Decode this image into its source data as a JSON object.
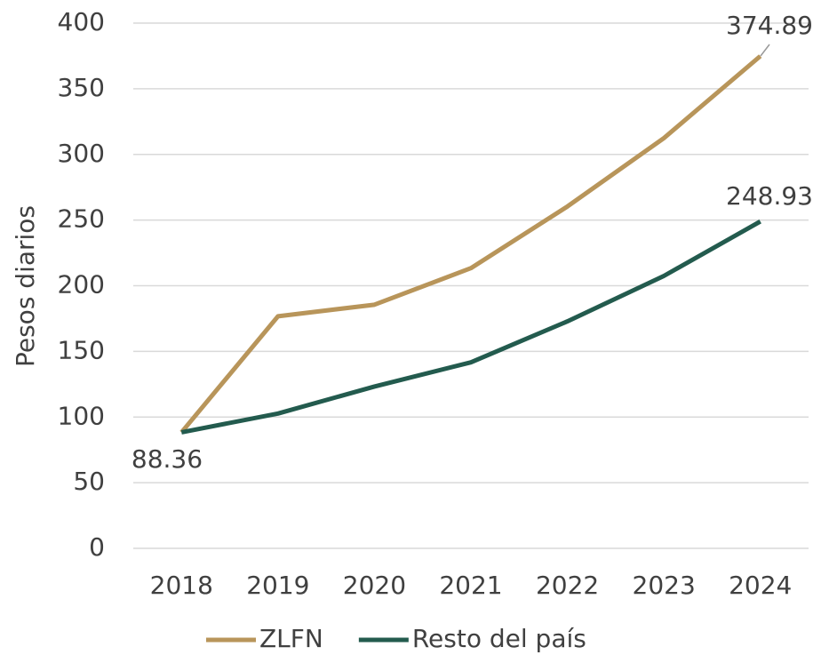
{
  "chart_data": {
    "type": "line",
    "y_label": "Pesos diarios",
    "categories": [
      "2018",
      "2019",
      "2020",
      "2021",
      "2022",
      "2023",
      "2024"
    ],
    "series": [
      {
        "name": "ZLFN",
        "color": "#b8955a",
        "values": [
          88.36,
          176.72,
          185.56,
          213.39,
          260.34,
          312.41,
          374.89
        ]
      },
      {
        "name": "Resto del país",
        "color": "#235b4e",
        "values": [
          88.36,
          102.68,
          123.22,
          141.7,
          172.87,
          207.44,
          248.93
        ]
      }
    ],
    "ylim": [
      0,
      400
    ],
    "yticks": [
      0,
      50,
      100,
      150,
      200,
      250,
      300,
      350,
      400
    ],
    "grid": true,
    "legend": "bottom"
  }
}
